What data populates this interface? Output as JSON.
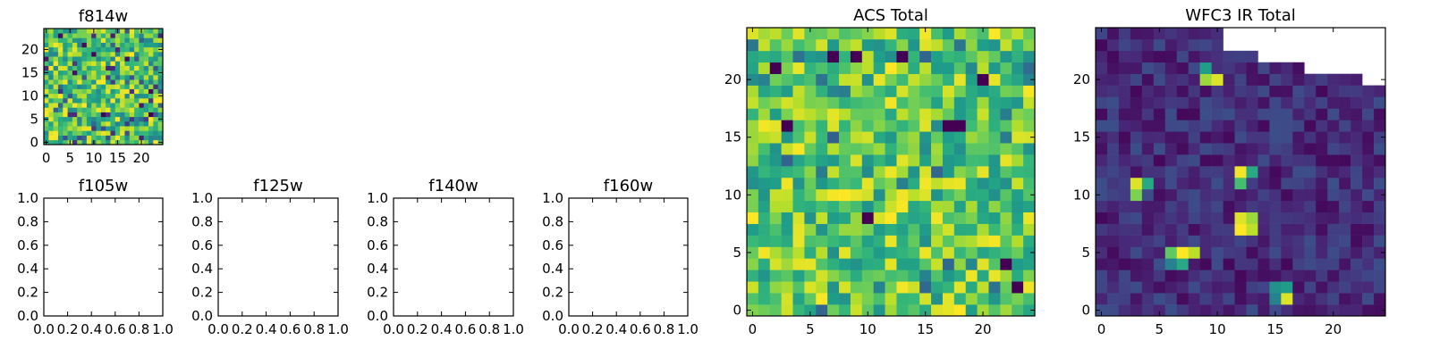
{
  "colormap": {
    "name": "viridis",
    "stops": [
      "#440154",
      "#482878",
      "#3e4a89",
      "#31688e",
      "#26828e",
      "#1f9e89",
      "#35b779",
      "#6ece58",
      "#b5de2b",
      "#fde725"
    ]
  },
  "colors": {
    "axis": "#000000",
    "background": "#ffffff"
  },
  "chart_data": [
    {
      "id": "f814w",
      "type": "heatmap",
      "title": "f814w",
      "xlabel": "",
      "ylabel": "",
      "xticks": [
        "0",
        "5",
        "10",
        "15",
        "20"
      ],
      "yticks": [
        "0",
        "5",
        "10",
        "15",
        "20"
      ],
      "xlim": [
        -0.5,
        24.5
      ],
      "ylim": [
        -0.5,
        24.5
      ],
      "shape": [
        25,
        25
      ],
      "value_range": [
        0,
        1
      ],
      "style": "noisy"
    },
    {
      "id": "f105w",
      "type": "heatmap",
      "title": "f105w",
      "empty": true,
      "xticks": [
        "0.0",
        "0.2",
        "0.4",
        "0.6",
        "0.8",
        "1.0"
      ],
      "yticks": [
        "0.0",
        "0.2",
        "0.4",
        "0.6",
        "0.8",
        "1.0"
      ],
      "xlim": [
        0,
        1
      ],
      "ylim": [
        0,
        1
      ]
    },
    {
      "id": "f125w",
      "type": "heatmap",
      "title": "f125w",
      "empty": true,
      "xticks": [
        "0.0",
        "0.2",
        "0.4",
        "0.6",
        "0.8",
        "1.0"
      ],
      "yticks": [
        "0.0",
        "0.2",
        "0.4",
        "0.6",
        "0.8",
        "1.0"
      ],
      "xlim": [
        0,
        1
      ],
      "ylim": [
        0,
        1
      ]
    },
    {
      "id": "f140w",
      "type": "heatmap",
      "title": "f140w",
      "empty": true,
      "xticks": [
        "0.0",
        "0.2",
        "0.4",
        "0.6",
        "0.8",
        "1.0"
      ],
      "yticks": [
        "0.0",
        "0.2",
        "0.4",
        "0.6",
        "0.8",
        "1.0"
      ],
      "xlim": [
        0,
        1
      ],
      "ylim": [
        0,
        1
      ]
    },
    {
      "id": "f160w",
      "type": "heatmap",
      "title": "f160w",
      "empty": true,
      "xticks": [
        "0.0",
        "0.2",
        "0.4",
        "0.6",
        "0.8",
        "1.0"
      ],
      "yticks": [
        "0.0",
        "0.2",
        "0.4",
        "0.6",
        "0.8",
        "1.0"
      ],
      "xlim": [
        0,
        1
      ],
      "ylim": [
        0,
        1
      ]
    },
    {
      "id": "acs-total",
      "type": "heatmap",
      "title": "ACS Total",
      "xlabel": "",
      "ylabel": "",
      "xticks": [
        "0",
        "5",
        "10",
        "15",
        "20"
      ],
      "yticks": [
        "0",
        "5",
        "10",
        "15",
        "20"
      ],
      "xlim": [
        -0.5,
        24.5
      ],
      "ylim": [
        -0.5,
        24.5
      ],
      "shape": [
        25,
        25
      ],
      "value_range": [
        0,
        1
      ],
      "style": "bright-noisy",
      "low_cells": [
        [
          21,
          2
        ],
        [
          16,
          3
        ],
        [
          22,
          7
        ],
        [
          22,
          9
        ],
        [
          22,
          13
        ],
        [
          20,
          20
        ],
        [
          8,
          10
        ],
        [
          16,
          17
        ],
        [
          16,
          18
        ],
        [
          4,
          22
        ],
        [
          2,
          23
        ]
      ]
    },
    {
      "id": "wfc3-ir-total",
      "type": "heatmap",
      "title": "WFC3 IR Total",
      "xlabel": "",
      "ylabel": "",
      "xticks": [
        "0",
        "5",
        "10",
        "15",
        "20"
      ],
      "yticks": [
        "0",
        "5",
        "10",
        "15",
        "20"
      ],
      "xlim": [
        -0.5,
        24.5
      ],
      "ylim": [
        -0.5,
        24.5
      ],
      "shape": [
        25,
        25
      ],
      "value_range": [
        0,
        1
      ],
      "style": "dark-sparse",
      "missing_from_row_by_col": {
        "col_from": 11,
        "start_rows": [
          23,
          23,
          23,
          22,
          22,
          22,
          22,
          21,
          21,
          21,
          21,
          21,
          20,
          20
        ]
      },
      "bright_cells": [
        [
          20,
          9,
          0.85
        ],
        [
          20,
          10,
          0.95
        ],
        [
          21,
          9,
          0.55
        ],
        [
          11,
          3,
          0.95
        ],
        [
          10,
          3,
          0.8
        ],
        [
          11,
          4,
          0.6
        ],
        [
          12,
          12,
          0.98
        ],
        [
          11,
          12,
          0.7
        ],
        [
          12,
          13,
          0.6
        ],
        [
          7,
          12,
          1.0
        ],
        [
          8,
          12,
          0.95
        ],
        [
          7,
          13,
          0.9
        ],
        [
          8,
          13,
          0.85
        ],
        [
          5,
          6,
          0.75
        ],
        [
          5,
          7,
          1.0
        ],
        [
          5,
          8,
          0.9
        ],
        [
          4,
          7,
          0.6
        ],
        [
          4,
          6,
          0.45
        ],
        [
          1,
          16,
          0.95
        ],
        [
          2,
          16,
          0.55
        ],
        [
          2,
          15,
          0.5
        ],
        [
          1,
          15,
          0.45
        ]
      ]
    }
  ]
}
